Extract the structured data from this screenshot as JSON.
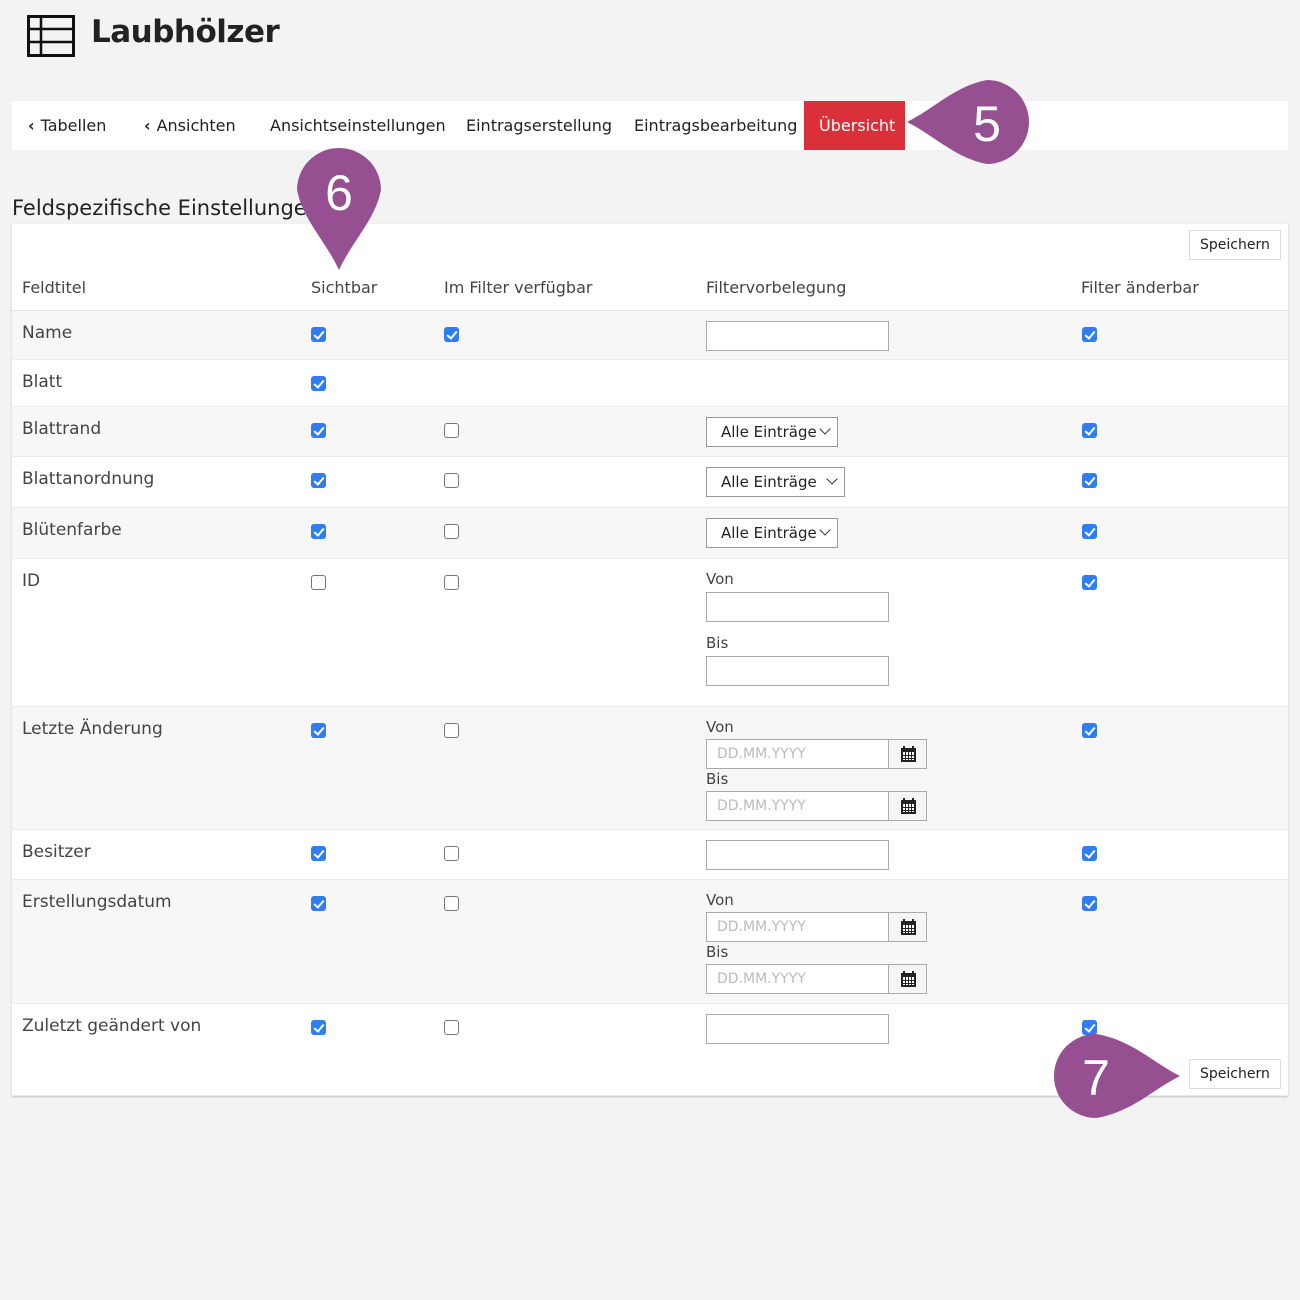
{
  "header": {
    "title": "Laubhölzer",
    "icon": "table-icon"
  },
  "nav": {
    "items": [
      {
        "label": "Tabellen",
        "back": true
      },
      {
        "label": "Ansichten",
        "back": true
      },
      {
        "label": "Ansichtseinstellungen"
      },
      {
        "label": "Eintragserstellung"
      },
      {
        "label": "Eintragsbearbeitung"
      },
      {
        "label": "Übersicht",
        "active": true
      }
    ],
    "active_color": "#d9303a"
  },
  "section": {
    "title": "Feldspezifische Einstellungen"
  },
  "save_label": "Speichern",
  "columns": [
    "Feldtitel",
    "Sichtbar",
    "Im Filter verfügbar",
    "Filtervorbelegung",
    "Filter änderbar"
  ],
  "rows": [
    {
      "title": "Name",
      "visible": true,
      "in_filter": true,
      "filter": {
        "type": "text"
      },
      "changeable": true
    },
    {
      "title": "Blatt",
      "visible": true,
      "in_filter": null,
      "filter": {
        "type": "none"
      },
      "changeable": null
    },
    {
      "title": "Blattrand",
      "visible": true,
      "in_filter": false,
      "filter": {
        "type": "select",
        "value": "Alle Einträge"
      },
      "changeable": true
    },
    {
      "title": "Blattanordnung",
      "visible": true,
      "in_filter": false,
      "filter": {
        "type": "select",
        "value": "Alle Einträge"
      },
      "changeable": true
    },
    {
      "title": "Blütenfarbe",
      "visible": true,
      "in_filter": false,
      "filter": {
        "type": "select",
        "value": "Alle Einträge"
      },
      "changeable": true
    },
    {
      "title": "ID",
      "visible": false,
      "in_filter": false,
      "filter": {
        "type": "range",
        "from_label": "Von",
        "to_label": "Bis"
      },
      "changeable": true
    },
    {
      "title": "Letzte Änderung",
      "visible": true,
      "in_filter": false,
      "filter": {
        "type": "daterange",
        "from_label": "Von",
        "to_label": "Bis",
        "placeholder": "DD.MM.YYYY"
      },
      "changeable": true
    },
    {
      "title": "Besitzer",
      "visible": true,
      "in_filter": false,
      "filter": {
        "type": "text"
      },
      "changeable": true
    },
    {
      "title": "Erstellungsdatum",
      "visible": true,
      "in_filter": false,
      "filter": {
        "type": "daterange",
        "from_label": "Von",
        "to_label": "Bis",
        "placeholder": "DD.MM.YYYY"
      },
      "changeable": true
    },
    {
      "title": "Zuletzt geändert von",
      "visible": true,
      "in_filter": false,
      "filter": {
        "type": "text"
      },
      "changeable": true
    }
  ],
  "annotations": [
    {
      "label": "5"
    },
    {
      "label": "6"
    },
    {
      "label": "7"
    }
  ],
  "colors": {
    "checkbox": "#2f7df0",
    "annotation": "#965091"
  }
}
